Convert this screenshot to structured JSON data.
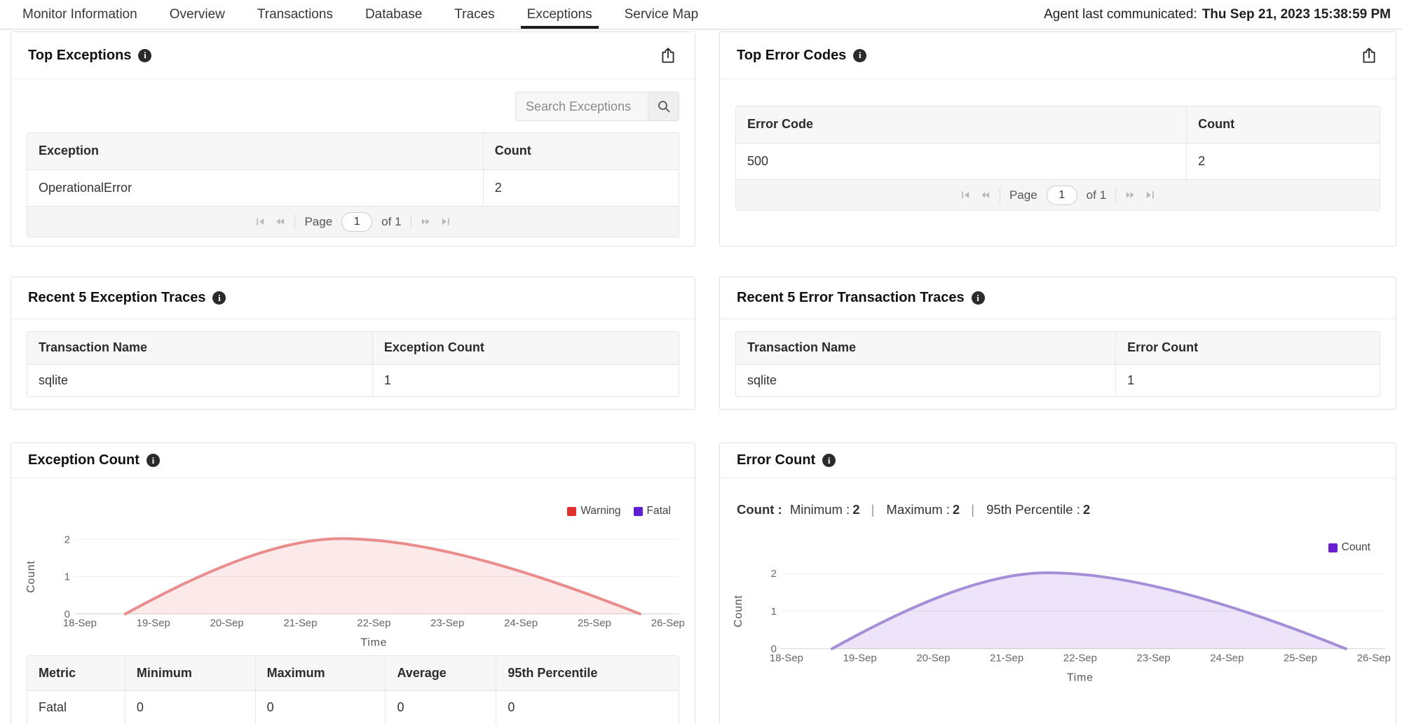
{
  "nav": {
    "tabs": [
      {
        "label": "Monitor Information",
        "active": false
      },
      {
        "label": "Overview",
        "active": false
      },
      {
        "label": "Transactions",
        "active": false
      },
      {
        "label": "Database",
        "active": false
      },
      {
        "label": "Traces",
        "active": false
      },
      {
        "label": "Exceptions",
        "active": true
      },
      {
        "label": "Service Map",
        "active": false
      }
    ],
    "agent_last_communicated_label": "Agent last communicated:",
    "agent_last_communicated_value": "Thu Sep 21, 2023 15:38:59 PM"
  },
  "panels": {
    "top_exceptions": {
      "title": "Top Exceptions",
      "search": {
        "placeholder": "Search Exceptions"
      },
      "table": {
        "headers": [
          "Exception",
          "Count"
        ],
        "rows": [
          [
            "OperationalError",
            "2"
          ]
        ]
      },
      "pagination": {
        "page_label": "Page",
        "page_value": "1",
        "of_label": "of 1"
      }
    },
    "top_error_codes": {
      "title": "Top Error Codes",
      "table": {
        "headers": [
          "Error Code",
          "Count"
        ],
        "rows": [
          [
            "500",
            "2"
          ]
        ]
      },
      "pagination": {
        "page_label": "Page",
        "page_value": "1",
        "of_label": "of 1"
      }
    },
    "recent_exception_traces": {
      "title": "Recent 5 Exception Traces",
      "table": {
        "headers": [
          "Transaction Name",
          "Exception Count"
        ],
        "rows": [
          [
            "sqlite",
            "1"
          ]
        ]
      }
    },
    "recent_error_transaction_traces": {
      "title": "Recent 5 Error Transaction Traces",
      "table": {
        "headers": [
          "Transaction Name",
          "Error Count"
        ],
        "rows": [
          [
            "sqlite",
            "1"
          ]
        ]
      }
    },
    "exception_count": {
      "title": "Exception Count",
      "metric_table": {
        "headers": [
          "Metric",
          "Minimum",
          "Maximum",
          "Average",
          "95th Percentile"
        ],
        "rows": [
          [
            "Fatal",
            "0",
            "0",
            "0",
            "0"
          ]
        ]
      }
    },
    "error_count": {
      "title": "Error Count",
      "stats": {
        "prefix": "Count :",
        "items": [
          {
            "label": "Minimum :",
            "value": "2"
          },
          {
            "label": "Maximum :",
            "value": "2"
          },
          {
            "label": "95th Percentile :",
            "value": "2"
          }
        ]
      }
    }
  },
  "chart_data": [
    {
      "type": "area",
      "title": "Exception Count",
      "xlabel": "Time",
      "ylabel": "Count",
      "x_ticks": [
        "18-Sep",
        "19-Sep",
        "20-Sep",
        "21-Sep",
        "22-Sep",
        "23-Sep",
        "24-Sep",
        "25-Sep",
        "26-Sep"
      ],
      "x_range": [
        18,
        26
      ],
      "y_ticks": [
        0,
        1,
        2
      ],
      "ylim": [
        0,
        2.1
      ],
      "grid": true,
      "legend_position": "top-right",
      "legend": [
        {
          "name": "Warning",
          "color": "#e03131"
        },
        {
          "name": "Fatal",
          "color": "#5e1fd2"
        }
      ],
      "series": [
        {
          "name": "Warning",
          "line_color": "#ea8c8c",
          "fill_color": "rgba(224,49,49,0.10)",
          "points": [
            {
              "x": 18.62,
              "y": 0
            },
            {
              "x": 21.55,
              "y": 2.02
            },
            {
              "x": 25.62,
              "y": 0
            }
          ]
        },
        {
          "name": "Fatal",
          "line_color": "#5e1fd2",
          "fill_color": "rgba(94,31,210,0.10)",
          "points": [
            {
              "x": 18.62,
              "y": 0
            },
            {
              "x": 21.55,
              "y": 0
            },
            {
              "x": 25.62,
              "y": 0
            }
          ]
        }
      ]
    },
    {
      "type": "area",
      "title": "Error Count",
      "xlabel": "Time",
      "ylabel": "Count",
      "x_ticks": [
        "18-Sep",
        "19-Sep",
        "20-Sep",
        "21-Sep",
        "22-Sep",
        "23-Sep",
        "24-Sep",
        "25-Sep",
        "26-Sep"
      ],
      "x_range": [
        18,
        26
      ],
      "y_ticks": [
        0,
        1,
        2
      ],
      "ylim": [
        0,
        2.1
      ],
      "grid": true,
      "legend_position": "top-right",
      "legend": [
        {
          "name": "Count",
          "color": "#6a1fd0"
        }
      ],
      "series": [
        {
          "name": "Count",
          "line_color": "#a48ed8",
          "fill_color": "rgba(106,31,208,0.12)",
          "points": [
            {
              "x": 18.62,
              "y": 0
            },
            {
              "x": 21.55,
              "y": 2.02
            },
            {
              "x": 25.62,
              "y": 0
            }
          ]
        }
      ]
    }
  ]
}
